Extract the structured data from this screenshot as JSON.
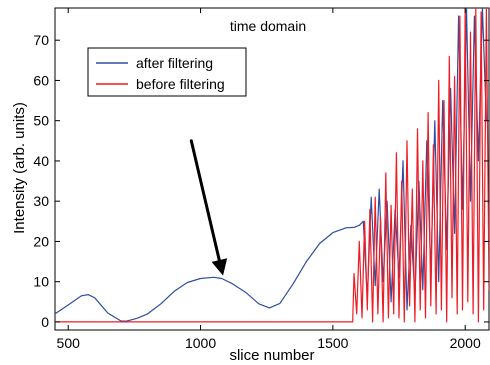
{
  "chart_data": {
    "type": "line",
    "title": "time domain",
    "xlabel": "slice number",
    "ylabel": "Intensity (arb. units)",
    "xlim": [
      450,
      2090
    ],
    "ylim": [
      -2,
      78
    ],
    "xticks": [
      500,
      1000,
      1500,
      2000
    ],
    "yticks": [
      0,
      10,
      20,
      30,
      40,
      50,
      60,
      70
    ],
    "xtick_labels": [
      "500",
      "1000",
      "1500",
      "2000"
    ],
    "ytick_labels": [
      "0",
      "10",
      "20",
      "30",
      "40",
      "50",
      "60",
      "70"
    ],
    "legend": {
      "placement": "upper-left",
      "entries": [
        "after filtering",
        "before filtering"
      ]
    },
    "grid": false,
    "colors": {
      "after": "#2f4ea1",
      "before": "#ee1c24",
      "annotation": "#000000"
    },
    "annotation": {
      "type": "arrow",
      "from": [
        965,
        45
      ],
      "to": [
        1085,
        11.5
      ]
    },
    "series": [
      {
        "name": "after filtering",
        "x": [
          450,
          500,
          550,
          575,
          600,
          650,
          700,
          720,
          760,
          800,
          850,
          900,
          950,
          1000,
          1050,
          1080,
          1120,
          1170,
          1220,
          1260,
          1300,
          1350,
          1400,
          1450,
          1500,
          1550,
          1580,
          1600,
          1615,
          1630,
          1645,
          1660,
          1675,
          1690,
          1705,
          1720,
          1735,
          1750,
          1765,
          1780,
          1795,
          1810,
          1825,
          1840,
          1855,
          1870,
          1885,
          1900,
          1915,
          1930,
          1945,
          1960,
          1975,
          1990,
          2005,
          2020,
          2035,
          2050,
          2065,
          2080
        ],
        "y": [
          2.0,
          4.2,
          6.5,
          6.8,
          6.0,
          2.2,
          0.2,
          0.2,
          0.9,
          2.0,
          4.5,
          7.6,
          9.8,
          10.8,
          11.1,
          10.8,
          9.5,
          7.4,
          4.5,
          3.5,
          4.6,
          9.5,
          15.0,
          19.5,
          22.2,
          23.4,
          23.5,
          24.0,
          25.0,
          6.0,
          31.0,
          9.0,
          33.0,
          10.0,
          30.0,
          5.0,
          28.0,
          11.0,
          40.0,
          3.0,
          24.0,
          6.0,
          35.0,
          8.0,
          45.0,
          12.0,
          50.0,
          10.0,
          55.0,
          18.0,
          58.0,
          22.0,
          76.0,
          28.0,
          78.0,
          30.0,
          76.0,
          40.0,
          78.0,
          50.0
        ]
      },
      {
        "name": "before filtering",
        "x": [
          450,
          1575,
          1580,
          1590,
          1600,
          1610,
          1620,
          1630,
          1640,
          1650,
          1660,
          1670,
          1680,
          1690,
          1700,
          1710,
          1720,
          1730,
          1740,
          1750,
          1760,
          1770,
          1780,
          1790,
          1800,
          1810,
          1820,
          1830,
          1840,
          1850,
          1860,
          1870,
          1880,
          1890,
          1900,
          1910,
          1920,
          1930,
          1940,
          1950,
          1960,
          1970,
          1980,
          1990,
          2000,
          2010,
          2020,
          2030,
          2040,
          2050,
          2060,
          2070,
          2080,
          2090
        ],
        "y": [
          0,
          0,
          12,
          2,
          20,
          1,
          25,
          3,
          28,
          0,
          31,
          2,
          26,
          0,
          37,
          1,
          29,
          2,
          42,
          1,
          35,
          0,
          45,
          4,
          33,
          0,
          48,
          3,
          40,
          1,
          52,
          4,
          44,
          2,
          60,
          3,
          55,
          0,
          66,
          6,
          61,
          2,
          76,
          3,
          78,
          5,
          72,
          2,
          78,
          0,
          77,
          3,
          78,
          8
        ]
      }
    ]
  }
}
